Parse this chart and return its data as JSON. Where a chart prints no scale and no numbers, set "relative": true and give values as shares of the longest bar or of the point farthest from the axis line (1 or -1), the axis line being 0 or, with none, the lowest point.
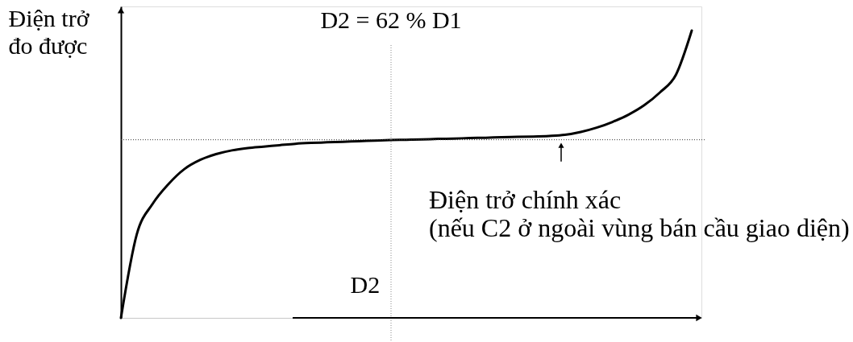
{
  "chart_data": {
    "type": "line",
    "relative": true,
    "xlabel": "D2",
    "ylabel": "Điện trở\nđo được",
    "categories": [
      null,
      null,
      null,
      null,
      null,
      null,
      null,
      null,
      null,
      null,
      null,
      null,
      null,
      null,
      null,
      null,
      null,
      null,
      null,
      null,
      null,
      null,
      null,
      null,
      null,
      null,
      null,
      null,
      null,
      null,
      null,
      null,
      null,
      null,
      null,
      null,
      null
    ],
    "values": [
      0,
      0.291,
      0.397,
      0.466,
      0.518,
      0.55,
      0.57,
      0.583,
      0.591,
      0.596,
      0.601,
      0.606,
      0.609,
      0.611,
      0.613,
      0.615,
      0.617,
      0.619,
      0.62,
      0.621,
      0.623,
      0.624,
      0.626,
      0.627,
      0.629,
      0.63,
      0.631,
      0.633,
      0.637,
      0.647,
      0.662,
      0.682,
      0.707,
      0.74,
      0.785,
      0.846,
      1
    ],
    "color": "#000000",
    "line_style": "solid",
    "ref_lines": [
      {
        "axis": "y",
        "value": 0.62,
        "label": "Điện trở chính xác\n(nếu C2 ở ngoài vùng bán cầu giao diện)",
        "line_style": "dotted",
        "color": "#333333"
      }
    ],
    "annotations": [
      "D2 = 62 % D1"
    ]
  }
}
